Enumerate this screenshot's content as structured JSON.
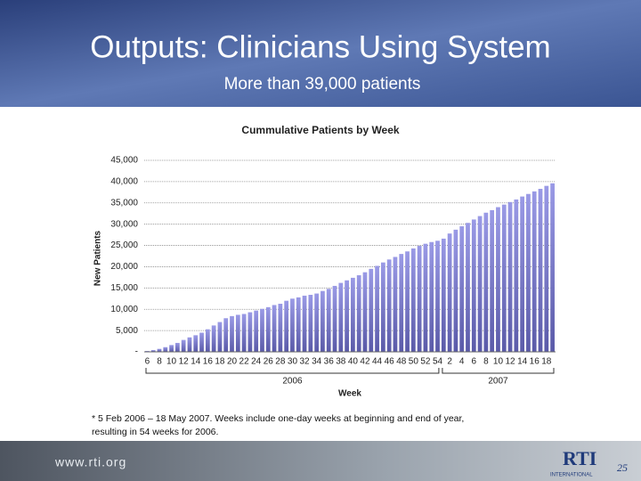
{
  "slide": {
    "title": "Outputs: Clinicians Using System",
    "subtitle": "More than 39,000 patients",
    "footnote": [
      "* 5 Feb 2006 – 18 May 2007. Weeks include one-day weeks at beginning and end of year,",
      "resulting in 54 weeks for 2006."
    ],
    "footer_url": "www.rti.org",
    "logo": "RTI",
    "logo_sub": "INTERNATIONAL",
    "page_number": "25"
  },
  "chart_data": {
    "type": "bar",
    "title": "Cummulative Patients by Week",
    "y_label": "New Patients",
    "x_label": "Week",
    "color": "#9a9ae6",
    "grid": true,
    "ylim": [
      0,
      45000
    ],
    "yticks": [
      {
        "value": 0,
        "label": "-"
      },
      {
        "value": 5000,
        "label": "5,000"
      },
      {
        "value": 10000,
        "label": "10,000"
      },
      {
        "value": 15000,
        "label": "15,000"
      },
      {
        "value": 20000,
        "label": "20,000"
      },
      {
        "value": 25000,
        "label": "25,000"
      },
      {
        "value": 30000,
        "label": "30,000"
      },
      {
        "value": 35000,
        "label": "35,000"
      },
      {
        "value": 40000,
        "label": "40,000"
      },
      {
        "value": 45000,
        "label": "45,000"
      }
    ],
    "groups": [
      {
        "label": "2006",
        "categories": [
          "6",
          null,
          "8",
          null,
          "10",
          null,
          "12",
          null,
          "14",
          null,
          "16",
          null,
          "18",
          null,
          "20",
          null,
          "22",
          null,
          "24",
          null,
          "26",
          null,
          "28",
          null,
          "30",
          null,
          "32",
          null,
          "34",
          null,
          "36",
          null,
          "38",
          null,
          "40",
          null,
          "42",
          null,
          "44",
          null,
          "46",
          null,
          "48",
          null,
          "50",
          null,
          "52",
          null,
          "54"
        ],
        "values": [
          200,
          400,
          700,
          1100,
          1600,
          2100,
          2800,
          3400,
          3900,
          4500,
          5300,
          6200,
          7000,
          7900,
          8400,
          8700,
          8900,
          9300,
          9700,
          10100,
          10500,
          11000,
          11300,
          12000,
          12500,
          12800,
          13200,
          13400,
          13700,
          14300,
          14800,
          15500,
          16200,
          16800,
          17400,
          18000,
          18700,
          19500,
          20200,
          21000,
          21700,
          22300,
          23000,
          23600,
          24300,
          24900,
          25400,
          25800,
          26100
        ]
      },
      {
        "label": "2007",
        "categories": [
          null,
          "2",
          null,
          "4",
          null,
          "6",
          null,
          "8",
          null,
          "10",
          null,
          "12",
          null,
          "14",
          null,
          "16",
          null,
          "18",
          null
        ],
        "values": [
          26600,
          27800,
          28700,
          29500,
          30300,
          31100,
          31900,
          32700,
          33300,
          34000,
          34600,
          35200,
          35800,
          36500,
          37100,
          37700,
          38300,
          39000,
          39600
        ]
      }
    ]
  }
}
